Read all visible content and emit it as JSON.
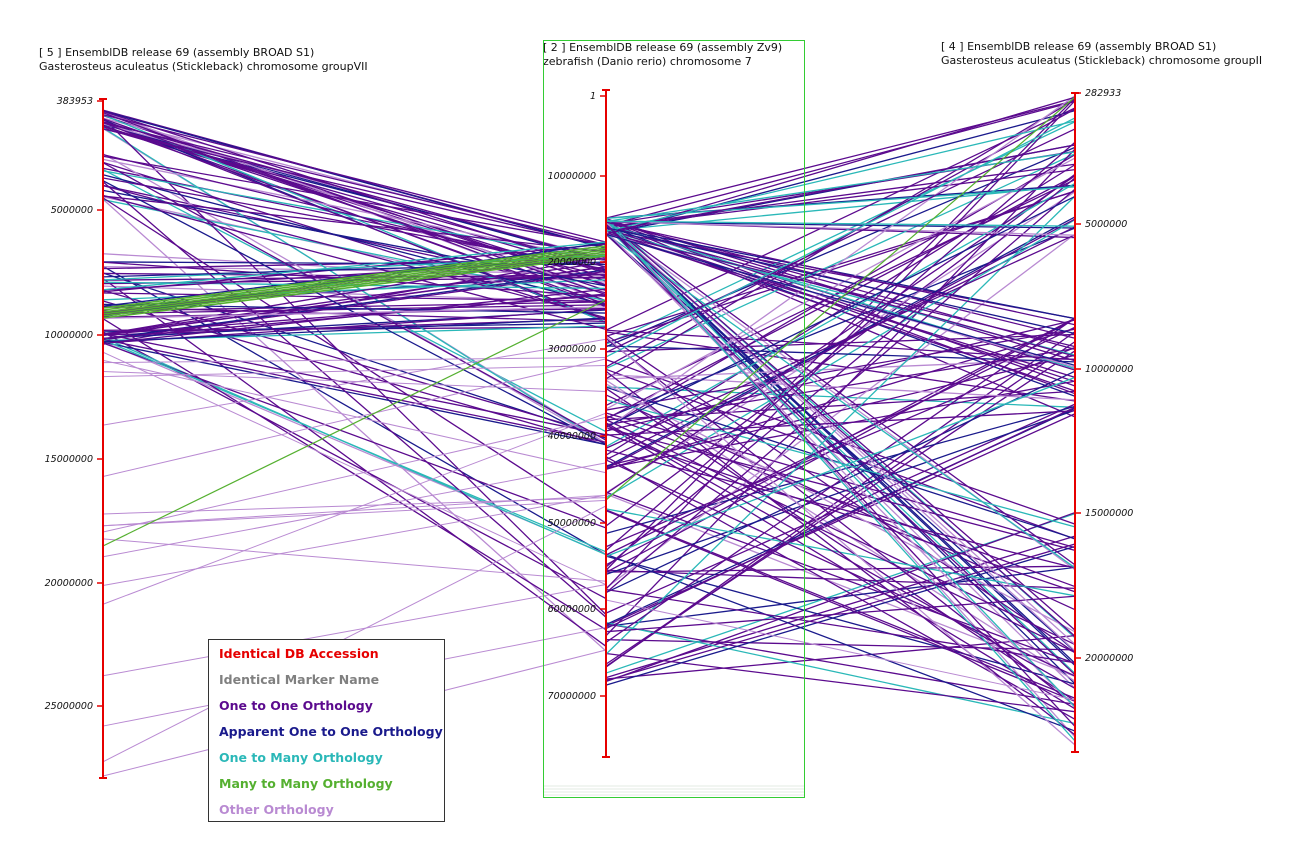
{
  "colors": {
    "axis": "#e60000",
    "selection_box": "#33cc33",
    "one_to_one": "#5b0a8e",
    "apparent": "#1a1a8c",
    "one_to_many": "#2ab8b8",
    "many_to_many": "#55b030",
    "other": "#b98ad2"
  },
  "maps": [
    {
      "header_line1": "[ 5 ] EnsemblDB release 69 (assembly BROAD S1)",
      "header_line2": "Gasterosteus aculeatus (Stickleback) chromosome groupVII",
      "ticks": [
        "383953",
        "5000000",
        "10000000",
        "15000000",
        "20000000",
        "25000000"
      ]
    },
    {
      "header_line1": "[ 2 ] EnsemblDB release 69 (assembly Zv9)",
      "header_line2": "zebrafish (Danio rerio) chromosome 7",
      "ticks": [
        "1",
        "10000000",
        "20000000",
        "30000000",
        "40000000",
        "50000000",
        "60000000",
        "70000000"
      ]
    },
    {
      "header_line1": "[ 4 ] EnsemblDB release 69 (assembly BROAD S1)",
      "header_line2": "Gasterosteus aculeatus (Stickleback) chromosome groupII",
      "ticks": [
        "282933",
        "5000000",
        "10000000",
        "15000000",
        "20000000"
      ]
    }
  ],
  "legend": [
    {
      "label": "Identical DB Accession",
      "color": "#e60000"
    },
    {
      "label": "Identical Marker Name",
      "color": "#808080"
    },
    {
      "label": "One to One Orthology",
      "color": "#5b0a8e"
    },
    {
      "label": "Apparent One to One Orthology",
      "color": "#1a1a8c"
    },
    {
      "label": "One to Many Orthology",
      "color": "#2ab8b8"
    },
    {
      "label": "Many to Many Orthology",
      "color": "#55b030"
    },
    {
      "label": "Other Orthology",
      "color": "#b98ad2"
    }
  ]
}
